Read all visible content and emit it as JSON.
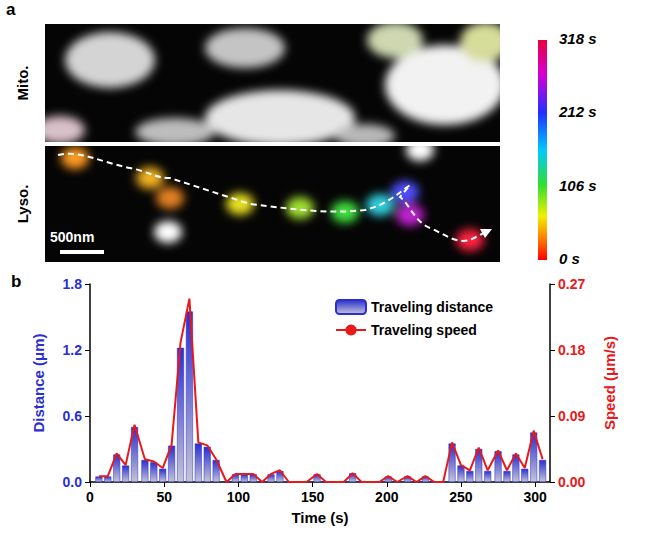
{
  "panel_a": {
    "label": "a",
    "rows": [
      "Mito.",
      "Lyso."
    ],
    "scale_bar": "500nm",
    "color_bar": {
      "range": [
        0,
        318
      ],
      "ticks": [
        {
          "value": 0,
          "label": "0 s"
        },
        {
          "value": 106,
          "label": "106 s"
        },
        {
          "value": 212,
          "label": "212 s"
        },
        {
          "value": 318,
          "label": "318 s"
        }
      ]
    }
  },
  "chart_data": {
    "panel_label": "b",
    "type": "bar",
    "x_label": "Time (s)",
    "y_label": "Distance (μm)",
    "y2_label": "Speed (μm/s)",
    "x": [
      6,
      12,
      18,
      24,
      30,
      37,
      43,
      49,
      55,
      61,
      67,
      73,
      79,
      85,
      92,
      98,
      104,
      110,
      116,
      122,
      128,
      134,
      140,
      146,
      153,
      159,
      165,
      171,
      177,
      183,
      189,
      195,
      201,
      207,
      214,
      220,
      226,
      232,
      238,
      244,
      250,
      256,
      262,
      268,
      275,
      281,
      287,
      293,
      299,
      305
    ],
    "series": [
      {
        "name": "Traveling distance",
        "type": "bar",
        "color": "#2a2fd0",
        "values": [
          0.05,
          0.05,
          0.25,
          0.15,
          0.5,
          0.2,
          0.18,
          0.12,
          0.33,
          1.22,
          1.55,
          0.35,
          0.32,
          0.2,
          0,
          0.07,
          0.07,
          0.07,
          0,
          0.07,
          0.1,
          0,
          0,
          0,
          0.07,
          0,
          0,
          0,
          0.08,
          0,
          0,
          0,
          0.05,
          0,
          0.05,
          0,
          0.05,
          0,
          0,
          0.35,
          0.15,
          0.1,
          0.3,
          0.1,
          0.28,
          0.1,
          0.25,
          0.12,
          0.45,
          0.2
        ]
      },
      {
        "name": "Traveling speed",
        "type": "line",
        "color": "#e8191b",
        "axis": "y2",
        "values": [
          0.008,
          0.008,
          0.039,
          0.023,
          0.078,
          0.031,
          0.028,
          0.019,
          0.051,
          0.19,
          0.25,
          0.054,
          0.05,
          0.031,
          0,
          0.011,
          0.011,
          0.011,
          0,
          0.011,
          0.016,
          0,
          0,
          0,
          0.011,
          0,
          0,
          0,
          0.012,
          0,
          0,
          0,
          0.008,
          0,
          0.008,
          0,
          0.008,
          0,
          0,
          0.054,
          0.023,
          0.016,
          0.047,
          0.016,
          0.043,
          0.016,
          0.039,
          0.019,
          0.07,
          0.031
        ]
      }
    ],
    "xlim": [
      0,
      310
    ],
    "xticks": [
      0,
      50,
      100,
      150,
      200,
      250,
      300
    ],
    "ylim": [
      0,
      1.8
    ],
    "yticks": [
      {
        "value": 0,
        "label": "0.0"
      },
      0.6,
      1.2,
      1.8
    ],
    "y2lim": [
      0,
      0.27
    ],
    "y2ticks": [
      {
        "value": 0,
        "label": "0.00"
      },
      0.09,
      0.18,
      0.27
    ],
    "legend": "top-right"
  }
}
